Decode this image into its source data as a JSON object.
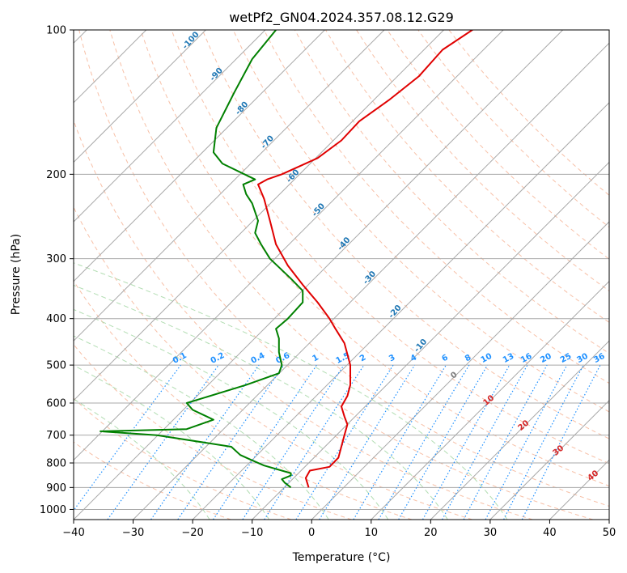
{
  "chart_data": {
    "type": "line",
    "title": "wetPf2_GN04.2024.357.08.12.G29",
    "xlabel": "Temperature (°C)",
    "ylabel": "Pressure (hPa)",
    "xlim": [
      -40,
      50
    ],
    "ylim": [
      1050,
      100
    ],
    "y_scale": "log",
    "x_ticks": [
      -40,
      -30,
      -20,
      -10,
      0,
      10,
      20,
      30,
      40,
      50
    ],
    "y_ticks": [
      100,
      200,
      300,
      400,
      500,
      600,
      700,
      800,
      900,
      1000
    ],
    "grid": true,
    "colors": {
      "temperature": "#e00000",
      "dewpoint": "#008000",
      "skew_isotherm": "#a8a8a8",
      "dry_adiabat": "#d2b48c",
      "moist_adiabat": "#9fd49f",
      "mixing_ratio": "#1e90ff",
      "theta_label": "#1f77b4",
      "theta_e_label": "#d62728",
      "theta_e_lines": "#f4a582"
    },
    "series": [
      {
        "key": "temperature",
        "x": [
          -0.5,
          -1,
          -0.3,
          3,
          4.5,
          5.5,
          6,
          5.5,
          5,
          6,
          6.5,
          6.5,
          5.5,
          4,
          3,
          1,
          -1.5,
          -4,
          -6,
          -7,
          -8,
          -9,
          -7.5,
          -5,
          1,
          5,
          8,
          13,
          18,
          22,
          27,
          30
        ],
        "y": [
          900,
          860,
          830,
          815,
          780,
          700,
          665,
          640,
          610,
          580,
          550,
          500,
          450,
          420,
          400,
          370,
          340,
          310,
          280,
          250,
          225,
          210,
          205,
          200,
          185,
          170,
          155,
          140,
          125,
          110,
          100,
          95
        ]
      },
      {
        "key": "dewpoint",
        "x": [
          -3.5,
          -4.5,
          -5,
          -3.5,
          -3.5,
          -5,
          -8,
          -10,
          -12,
          -13.5,
          -26,
          -35.5,
          -21,
          -16.5,
          -20,
          -21,
          -11,
          -5.5,
          -5,
          -5.5,
          -5.5,
          -6,
          -4,
          -1.5,
          -1.5,
          -3.5,
          -7,
          -8.5,
          -9.5,
          -9,
          -10,
          -11,
          -11.5,
          -9.5,
          -15,
          -16.5,
          -16,
          -13,
          -10,
          -6
        ],
        "y": [
          900,
          880,
          865,
          850,
          840,
          830,
          810,
          790,
          770,
          740,
          700,
          687,
          680,
          650,
          620,
          600,
          550,
          520,
          500,
          470,
          440,
          420,
          400,
          370,
          350,
          330,
          300,
          280,
          265,
          250,
          230,
          220,
          210,
          205,
          190,
          180,
          160,
          135,
          115,
          100
        ]
      }
    ],
    "mixing_ratio_labels": [
      "0.1",
      "0.2",
      "0.4",
      "0.6",
      "1",
      "1.5",
      "2",
      "3",
      "4",
      "6",
      "8",
      "10",
      "13",
      "16",
      "20",
      "25",
      "30",
      "36"
    ],
    "mixing_ratio_values": [
      0.1,
      0.2,
      0.4,
      0.6,
      1,
      1.5,
      2,
      3,
      4,
      6,
      8,
      10,
      13,
      16,
      20,
      25,
      30,
      36
    ],
    "theta_labels": [
      "-100",
      "-90",
      "-80",
      "-70",
      "-60",
      "-50",
      "-40",
      "-30",
      "-20",
      "-10"
    ],
    "theta_e_labels": [
      "0",
      "10",
      "20",
      "30",
      "40"
    ]
  }
}
